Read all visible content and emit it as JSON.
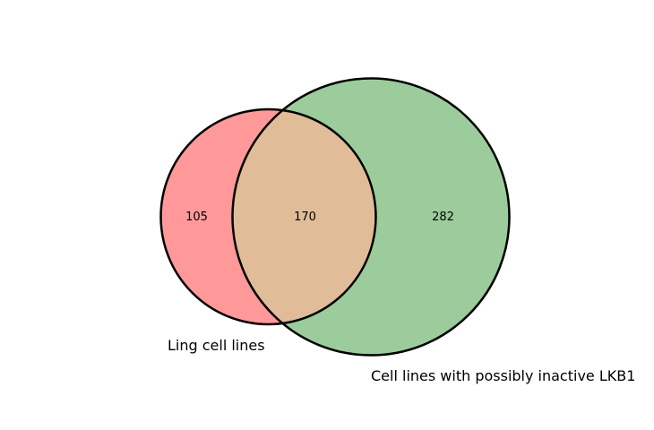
{
  "venn": {
    "sets": [
      {
        "label": "Ling cell lines",
        "only_count": "105",
        "color": "#ff9999"
      },
      {
        "label": "Cell lines with possibly inactive LKB1",
        "only_count": "282",
        "color": "#9ccc9c"
      }
    ],
    "intersection_count": "170",
    "intersection_color": "#e0bc98",
    "outline_color": "#000000"
  }
}
